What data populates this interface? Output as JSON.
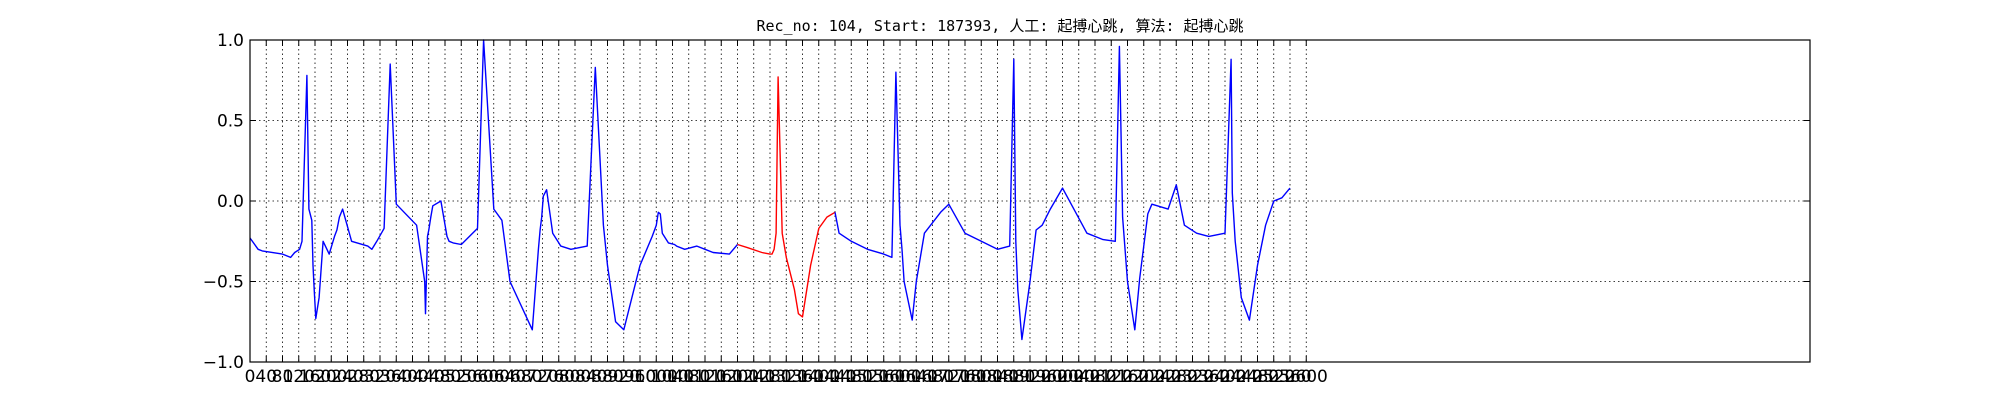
{
  "chart_data": {
    "type": "line",
    "title": "Rec_no: 104, Start: 187393, 人工: 起搏心跳, 算法: 起搏心跳",
    "xlabel": "",
    "ylabel": "",
    "xlim": [
      0,
      3840
    ],
    "ylim": [
      -1.0,
      1.0
    ],
    "yticks": [
      1.0,
      0.5,
      0.0,
      -0.5,
      -1.0
    ],
    "ytick_labels": [
      "1.0",
      "0.5",
      "0.0",
      "−0.5",
      "−1.0"
    ],
    "xticks": [
      0,
      40,
      80,
      120,
      160,
      200,
      240,
      280,
      320,
      360,
      400,
      440,
      480,
      520,
      560,
      600,
      640,
      680,
      720,
      760,
      800,
      840,
      880,
      920,
      960,
      1000,
      1040,
      1080,
      1120,
      1160,
      1200,
      1240,
      1280,
      1320,
      1360,
      1400,
      1440,
      1480,
      1520,
      1560,
      1600,
      1640,
      1680,
      1720,
      1760,
      1800,
      1840,
      1880,
      1920,
      1960,
      2000,
      2040,
      2080,
      2120,
      2160,
      2200,
      2240,
      2280,
      2320,
      2360,
      2400,
      2440,
      2480,
      2520,
      2560,
      2600
    ],
    "grid": true,
    "grid_axis": "both",
    "series": [
      {
        "color": "#0000ff",
        "x": [
          0,
          20,
          30,
          80,
          100,
          110,
          122,
          128,
          140,
          145,
          152,
          155,
          158,
          162,
          170,
          180,
          195,
          208,
          214,
          220,
          228,
          250,
          290,
          300,
          312,
          330,
          345,
          360,
          410,
          430,
          432,
          437,
          440,
          445,
          450,
          470,
          485,
          490,
          500,
          520,
          560,
          575,
          600,
          620,
          640,
          695,
          710,
          714,
          718,
          722,
          730,
          745,
          760,
          765,
          790,
          830,
          850,
          870,
          880,
          900,
          920,
          960,
          990,
          1000,
          1005,
          1010,
          1015,
          1030,
          1045,
          1050,
          1070,
          1100,
          1120,
          1140,
          1180,
          1200
        ],
        "y": [
          -0.23,
          -0.3,
          -0.31,
          -0.33,
          -0.35,
          -0.32,
          -0.3,
          -0.25,
          0.78,
          -0.05,
          -0.12,
          -0.4,
          -0.55,
          -0.73,
          -0.6,
          -0.25,
          -0.33,
          -0.22,
          -0.18,
          -0.1,
          -0.05,
          -0.25,
          -0.28,
          -0.3,
          -0.25,
          -0.17,
          0.85,
          -0.02,
          -0.15,
          -0.5,
          -0.7,
          -0.22,
          -0.18,
          -0.1,
          -0.03,
          0.0,
          -0.22,
          -0.25,
          -0.26,
          -0.27,
          -0.17,
          1.0,
          -0.05,
          -0.12,
          -0.5,
          -0.8,
          -0.3,
          -0.18,
          -0.1,
          0.03,
          0.07,
          -0.2,
          -0.26,
          -0.28,
          -0.3,
          -0.28,
          0.83,
          -0.15,
          -0.4,
          -0.75,
          -0.8,
          -0.4,
          -0.22,
          -0.15,
          -0.07,
          -0.08,
          -0.2,
          -0.26,
          -0.27,
          -0.28,
          -0.3,
          -0.28,
          -0.3,
          -0.32,
          -0.33,
          -0.27
        ]
      },
      {
        "color": "#ff0000",
        "x": [
          1200,
          1225,
          1260,
          1280,
          1285,
          1290,
          1295,
          1300,
          1310,
          1320,
          1340,
          1350,
          1360,
          1380,
          1400,
          1420,
          1440
        ],
        "y": [
          -0.27,
          -0.29,
          -0.32,
          -0.33,
          -0.33,
          -0.3,
          -0.2,
          0.77,
          -0.2,
          -0.35,
          -0.55,
          -0.7,
          -0.72,
          -0.4,
          -0.17,
          -0.1,
          -0.07
        ]
      },
      {
        "color": "#0000ff",
        "x": [
          1440,
          1450,
          1480,
          1520,
          1560,
          1580,
          1590,
          1600,
          1605,
          1610,
          1630,
          1640,
          1660,
          1700,
          1720,
          1760,
          1800,
          1840,
          1870,
          1880,
          1885,
          1890,
          1900,
          1920,
          1935,
          1950,
          1970,
          2000,
          2060,
          2100,
          2130,
          2140,
          2148,
          2160,
          2178,
          2190,
          2210,
          2220,
          2260,
          2280,
          2300,
          2330,
          2360,
          2400,
          2415,
          2418,
          2425,
          2440,
          2460,
          2480,
          2500,
          2520,
          2540,
          2560
        ],
        "y": [
          -0.07,
          -0.2,
          -0.25,
          -0.3,
          -0.33,
          -0.35,
          0.8,
          -0.15,
          -0.3,
          -0.5,
          -0.74,
          -0.5,
          -0.2,
          -0.07,
          -0.02,
          -0.2,
          -0.25,
          -0.3,
          -0.28,
          0.88,
          -0.25,
          -0.55,
          -0.86,
          -0.5,
          -0.18,
          -0.15,
          -0.05,
          0.08,
          -0.2,
          -0.24,
          -0.25,
          0.96,
          -0.1,
          -0.5,
          -0.8,
          -0.48,
          -0.08,
          -0.02,
          -0.05,
          0.1,
          -0.15,
          -0.2,
          -0.22,
          -0.2,
          0.88,
          0.05,
          -0.25,
          -0.6,
          -0.74,
          -0.4,
          -0.15,
          0.0,
          0.02,
          0.08
        ]
      }
    ]
  }
}
